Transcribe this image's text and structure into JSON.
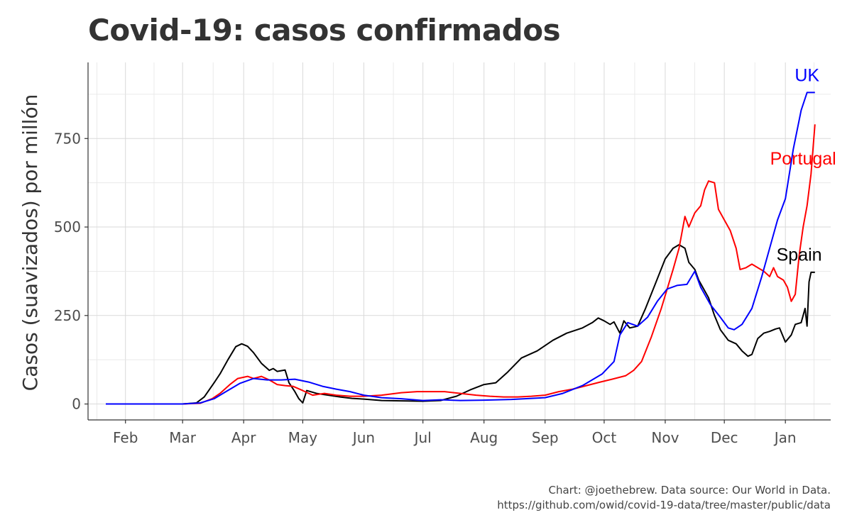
{
  "title": "Covid-19: casos confirmados",
  "caption": {
    "line1": "Chart: @joethebrew. Data source: Our World in Data.",
    "line2": "https://github.com/owid/covid-19-data/tree/master/public/data"
  },
  "chart_data": {
    "type": "line",
    "title": "Covid-19: casos confirmados",
    "xlabel": "",
    "ylabel": "Casos (suavizados) por millón",
    "x_ticks": [
      "Feb",
      "Mar",
      "Apr",
      "May",
      "Jun",
      "Jul",
      "Aug",
      "Sep",
      "Oct",
      "Nov",
      "Dec",
      "Jan"
    ],
    "x_tick_dates": [
      "2020-02-01",
      "2020-03-01",
      "2020-04-01",
      "2020-05-01",
      "2020-06-01",
      "2020-07-01",
      "2020-08-01",
      "2020-09-01",
      "2020-10-01",
      "2020-11-01",
      "2020-12-01",
      "2021-01-01"
    ],
    "xlim": [
      "2020-01-13",
      "2021-01-24"
    ],
    "y_ticks": [
      0,
      250,
      500,
      750
    ],
    "ylim": [
      -45,
      965
    ],
    "grid": true,
    "series": [
      {
        "name": "Spain",
        "color": "#000000",
        "points": [
          [
            "2020-01-22",
            0
          ],
          [
            "2020-02-15",
            0
          ],
          [
            "2020-03-01",
            0
          ],
          [
            "2020-03-08",
            3
          ],
          [
            "2020-03-12",
            20
          ],
          [
            "2020-03-17",
            60
          ],
          [
            "2020-03-20",
            85
          ],
          [
            "2020-03-24",
            125
          ],
          [
            "2020-03-28",
            162
          ],
          [
            "2020-03-31",
            170
          ],
          [
            "2020-04-03",
            163
          ],
          [
            "2020-04-06",
            145
          ],
          [
            "2020-04-10",
            115
          ],
          [
            "2020-04-14",
            95
          ],
          [
            "2020-04-16",
            100
          ],
          [
            "2020-04-18",
            92
          ],
          [
            "2020-04-22",
            96
          ],
          [
            "2020-04-24",
            60
          ],
          [
            "2020-04-27",
            35
          ],
          [
            "2020-04-29",
            15
          ],
          [
            "2020-05-01",
            3
          ],
          [
            "2020-05-03",
            38
          ],
          [
            "2020-05-08",
            30
          ],
          [
            "2020-05-14",
            25
          ],
          [
            "2020-05-20",
            20
          ],
          [
            "2020-05-26",
            16
          ],
          [
            "2020-06-01",
            14
          ],
          [
            "2020-06-10",
            10
          ],
          [
            "2020-06-20",
            9
          ],
          [
            "2020-07-01",
            8
          ],
          [
            "2020-07-10",
            10
          ],
          [
            "2020-07-18",
            22
          ],
          [
            "2020-07-25",
            40
          ],
          [
            "2020-08-01",
            55
          ],
          [
            "2020-08-07",
            60
          ],
          [
            "2020-08-13",
            90
          ],
          [
            "2020-08-20",
            130
          ],
          [
            "2020-08-28",
            150
          ],
          [
            "2020-09-05",
            180
          ],
          [
            "2020-09-12",
            200
          ],
          [
            "2020-09-20",
            215
          ],
          [
            "2020-09-25",
            230
          ],
          [
            "2020-09-28",
            243
          ],
          [
            "2020-10-01",
            235
          ],
          [
            "2020-10-04",
            225
          ],
          [
            "2020-10-06",
            232
          ],
          [
            "2020-10-09",
            200
          ],
          [
            "2020-10-11",
            235
          ],
          [
            "2020-10-14",
            215
          ],
          [
            "2020-10-18",
            220
          ],
          [
            "2020-10-22",
            270
          ],
          [
            "2020-10-27",
            340
          ],
          [
            "2020-11-01",
            410
          ],
          [
            "2020-11-05",
            440
          ],
          [
            "2020-11-08",
            450
          ],
          [
            "2020-11-11",
            440
          ],
          [
            "2020-11-13",
            400
          ],
          [
            "2020-11-16",
            380
          ],
          [
            "2020-11-18",
            350
          ],
          [
            "2020-11-20",
            330
          ],
          [
            "2020-11-23",
            300
          ],
          [
            "2020-11-26",
            250
          ],
          [
            "2020-11-29",
            210
          ],
          [
            "2020-12-03",
            180
          ],
          [
            "2020-12-07",
            170
          ],
          [
            "2020-12-10",
            150
          ],
          [
            "2020-12-13",
            135
          ],
          [
            "2020-12-15",
            140
          ],
          [
            "2020-12-18",
            185
          ],
          [
            "2020-12-21",
            200
          ],
          [
            "2020-12-24",
            205
          ],
          [
            "2020-12-27",
            212
          ],
          [
            "2020-12-29",
            215
          ],
          [
            "2021-01-01",
            175
          ],
          [
            "2021-01-04",
            195
          ],
          [
            "2021-01-06",
            225
          ],
          [
            "2021-01-09",
            230
          ],
          [
            "2021-01-11",
            270
          ],
          [
            "2021-01-12",
            220
          ],
          [
            "2021-01-13",
            345
          ],
          [
            "2021-01-14",
            372
          ],
          [
            "2021-01-16",
            372
          ]
        ]
      },
      {
        "name": "Portugal",
        "color": "#ff0000",
        "points": [
          [
            "2020-01-22",
            0
          ],
          [
            "2020-03-01",
            0
          ],
          [
            "2020-03-10",
            2
          ],
          [
            "2020-03-16",
            15
          ],
          [
            "2020-03-20",
            30
          ],
          [
            "2020-03-25",
            55
          ],
          [
            "2020-03-29",
            72
          ],
          [
            "2020-04-03",
            78
          ],
          [
            "2020-04-06",
            72
          ],
          [
            "2020-04-10",
            78
          ],
          [
            "2020-04-14",
            68
          ],
          [
            "2020-04-18",
            55
          ],
          [
            "2020-04-22",
            52
          ],
          [
            "2020-04-26",
            50
          ],
          [
            "2020-05-01",
            38
          ],
          [
            "2020-05-06",
            25
          ],
          [
            "2020-05-12",
            30
          ],
          [
            "2020-05-18",
            25
          ],
          [
            "2020-05-25",
            22
          ],
          [
            "2020-06-01",
            22
          ],
          [
            "2020-06-10",
            25
          ],
          [
            "2020-06-20",
            32
          ],
          [
            "2020-06-28",
            35
          ],
          [
            "2020-07-05",
            35
          ],
          [
            "2020-07-12",
            35
          ],
          [
            "2020-07-20",
            30
          ],
          [
            "2020-07-28",
            25
          ],
          [
            "2020-08-04",
            22
          ],
          [
            "2020-08-11",
            20
          ],
          [
            "2020-08-18",
            20
          ],
          [
            "2020-08-25",
            22
          ],
          [
            "2020-09-01",
            25
          ],
          [
            "2020-09-08",
            35
          ],
          [
            "2020-09-15",
            42
          ],
          [
            "2020-09-22",
            52
          ],
          [
            "2020-09-29",
            62
          ],
          [
            "2020-10-05",
            70
          ],
          [
            "2020-10-12",
            80
          ],
          [
            "2020-10-16",
            95
          ],
          [
            "2020-10-20",
            120
          ],
          [
            "2020-10-25",
            190
          ],
          [
            "2020-10-30",
            270
          ],
          [
            "2020-11-05",
            380
          ],
          [
            "2020-11-08",
            440
          ],
          [
            "2020-11-11",
            530
          ],
          [
            "2020-11-13",
            500
          ],
          [
            "2020-11-16",
            540
          ],
          [
            "2020-11-19",
            560
          ],
          [
            "2020-11-21",
            605
          ],
          [
            "2020-11-23",
            630
          ],
          [
            "2020-11-26",
            625
          ],
          [
            "2020-11-28",
            550
          ],
          [
            "2020-12-01",
            520
          ],
          [
            "2020-12-04",
            490
          ],
          [
            "2020-12-07",
            440
          ],
          [
            "2020-12-09",
            380
          ],
          [
            "2020-12-12",
            385
          ],
          [
            "2020-12-15",
            395
          ],
          [
            "2020-12-18",
            385
          ],
          [
            "2020-12-21",
            375
          ],
          [
            "2020-12-24",
            360
          ],
          [
            "2020-12-26",
            385
          ],
          [
            "2020-12-28",
            360
          ],
          [
            "2020-12-31",
            350
          ],
          [
            "2021-01-02",
            330
          ],
          [
            "2021-01-04",
            290
          ],
          [
            "2021-01-06",
            310
          ],
          [
            "2021-01-08",
            420
          ],
          [
            "2021-01-10",
            500
          ],
          [
            "2021-01-12",
            560
          ],
          [
            "2021-01-14",
            650
          ],
          [
            "2021-01-16",
            790
          ]
        ]
      },
      {
        "name": "UK",
        "color": "#0000ff",
        "points": [
          [
            "2020-01-22",
            0
          ],
          [
            "2020-03-01",
            0
          ],
          [
            "2020-03-10",
            3
          ],
          [
            "2020-03-17",
            15
          ],
          [
            "2020-03-23",
            35
          ],
          [
            "2020-03-30",
            58
          ],
          [
            "2020-04-06",
            72
          ],
          [
            "2020-04-13",
            68
          ],
          [
            "2020-04-20",
            68
          ],
          [
            "2020-04-27",
            70
          ],
          [
            "2020-05-04",
            62
          ],
          [
            "2020-05-11",
            50
          ],
          [
            "2020-05-18",
            42
          ],
          [
            "2020-05-25",
            35
          ],
          [
            "2020-06-01",
            25
          ],
          [
            "2020-06-10",
            18
          ],
          [
            "2020-06-20",
            15
          ],
          [
            "2020-07-01",
            10
          ],
          [
            "2020-07-10",
            12
          ],
          [
            "2020-07-20",
            10
          ],
          [
            "2020-08-01",
            11
          ],
          [
            "2020-08-15",
            13
          ],
          [
            "2020-09-01",
            18
          ],
          [
            "2020-09-10",
            30
          ],
          [
            "2020-09-20",
            52
          ],
          [
            "2020-09-30",
            85
          ],
          [
            "2020-10-06",
            120
          ],
          [
            "2020-10-09",
            195
          ],
          [
            "2020-10-13",
            230
          ],
          [
            "2020-10-18",
            220
          ],
          [
            "2020-10-23",
            245
          ],
          [
            "2020-10-28",
            290
          ],
          [
            "2020-11-02",
            325
          ],
          [
            "2020-11-07",
            335
          ],
          [
            "2020-11-12",
            338
          ],
          [
            "2020-11-16",
            375
          ],
          [
            "2020-11-19",
            330
          ],
          [
            "2020-11-24",
            280
          ],
          [
            "2020-11-29",
            245
          ],
          [
            "2020-12-03",
            215
          ],
          [
            "2020-12-06",
            210
          ],
          [
            "2020-12-10",
            225
          ],
          [
            "2020-12-15",
            270
          ],
          [
            "2020-12-20",
            360
          ],
          [
            "2020-12-24",
            440
          ],
          [
            "2020-12-28",
            520
          ],
          [
            "2021-01-01",
            580
          ],
          [
            "2021-01-05",
            720
          ],
          [
            "2021-01-09",
            830
          ],
          [
            "2021-01-12",
            880
          ],
          [
            "2021-01-16",
            880
          ]
        ]
      }
    ],
    "labels": [
      {
        "text": "UK",
        "series": "UK",
        "date": "2021-01-12",
        "value": 925
      },
      {
        "text": "Portugal",
        "series": "Portugal",
        "date": "2021-01-10",
        "value": 690
      },
      {
        "text": "Spain",
        "series": "Spain",
        "date": "2021-01-08",
        "value": 418
      }
    ]
  }
}
